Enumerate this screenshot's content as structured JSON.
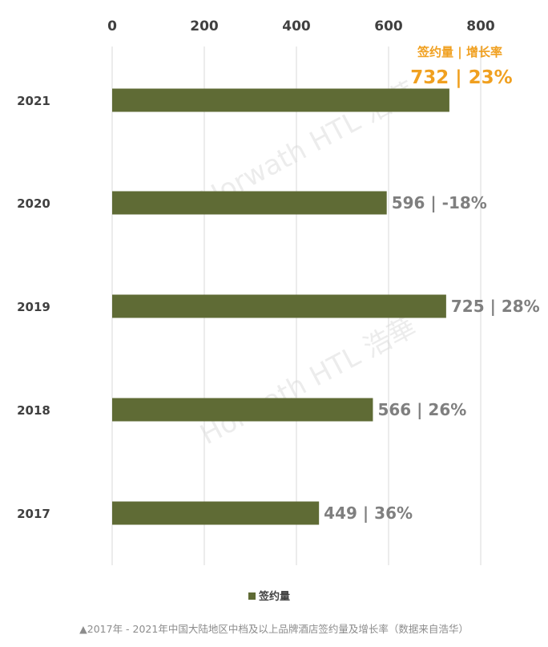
{
  "chart_data": {
    "type": "bar",
    "orientation": "horizontal",
    "categories": [
      "2021",
      "2020",
      "2019",
      "2018",
      "2017"
    ],
    "series": [
      {
        "name": "签约量",
        "values": [
          732,
          596,
          725,
          566,
          449
        ]
      }
    ],
    "growth": [
      "23%",
      "-18%",
      "28%",
      "26%",
      "36%"
    ],
    "data_labels": [
      "732 | 23%",
      "596 | -18%",
      "725 | 28%",
      "566 | 26%",
      "449 | 36%"
    ],
    "header_label": "签约量 | 增长率",
    "x_ticks": [
      "0",
      "200",
      "400",
      "600",
      "800"
    ],
    "xlim": [
      0,
      800
    ],
    "grid": true,
    "legend_position": "bottom",
    "bar_color": "#5f6b35",
    "highlight_color": "#f0a020",
    "label_color": "#7f7f7f",
    "watermark": "Horwath HTL 浩華"
  },
  "caption": "▲2017年 - 2021年中国大陆地区中档及以上品牌酒店签约量及增长率（数据来自浩华）"
}
